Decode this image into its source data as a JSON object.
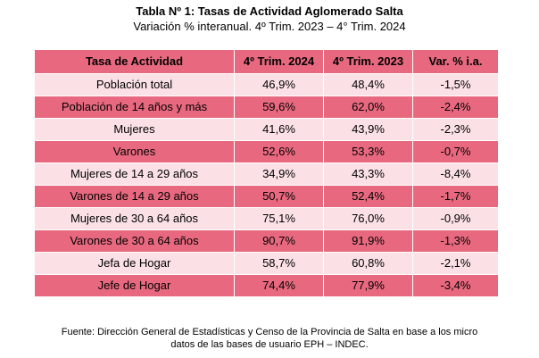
{
  "title": "Tabla Nº 1: Tasas de Actividad Aglomerado Salta",
  "subtitle": "Variación % interanual. 4º Trim. 2023 – 4° Trim. 2024",
  "table": {
    "headers": [
      "Tasa de Actividad",
      "4º Trim. 2024",
      "4º Trim. 2023",
      "Var. % i.a."
    ],
    "rows": [
      [
        "Población total",
        "46,9%",
        "48,4%",
        "-1,5%"
      ],
      [
        "Población de 14 años y más",
        "59,6%",
        "62,0%",
        "-2,4%"
      ],
      [
        "Mujeres",
        "41,6%",
        "43,9%",
        "-2,3%"
      ],
      [
        "Varones",
        "52,6%",
        "53,3%",
        "-0,7%"
      ],
      [
        "Mujeres de 14 a 29 años",
        "34,9%",
        "43,3%",
        "-8,4%"
      ],
      [
        "Varones de 14 a 29 años",
        "50,7%",
        "52,4%",
        "-1,7%"
      ],
      [
        "Mujeres de 30 a 64 años",
        "75,1%",
        "76,0%",
        "-0,9%"
      ],
      [
        "Varones de 30 a 64 años",
        "90,7%",
        "91,9%",
        "-1,3%"
      ],
      [
        "Jefa de Hogar",
        "58,7%",
        "60,8%",
        "-2,1%"
      ],
      [
        "Jefe de Hogar",
        "74,4%",
        "77,9%",
        "-3,4%"
      ]
    ]
  },
  "source_line1": "Fuente: Dirección General de Estadísticas y Censo de la Provincia de Salta en base a los micro",
  "source_line2": "datos de las bases de usuario EPH – INDEC.",
  "colors": {
    "header_bg": "#e8697f",
    "row_dark": "#e8697f",
    "row_light": "#fbe1e6"
  }
}
